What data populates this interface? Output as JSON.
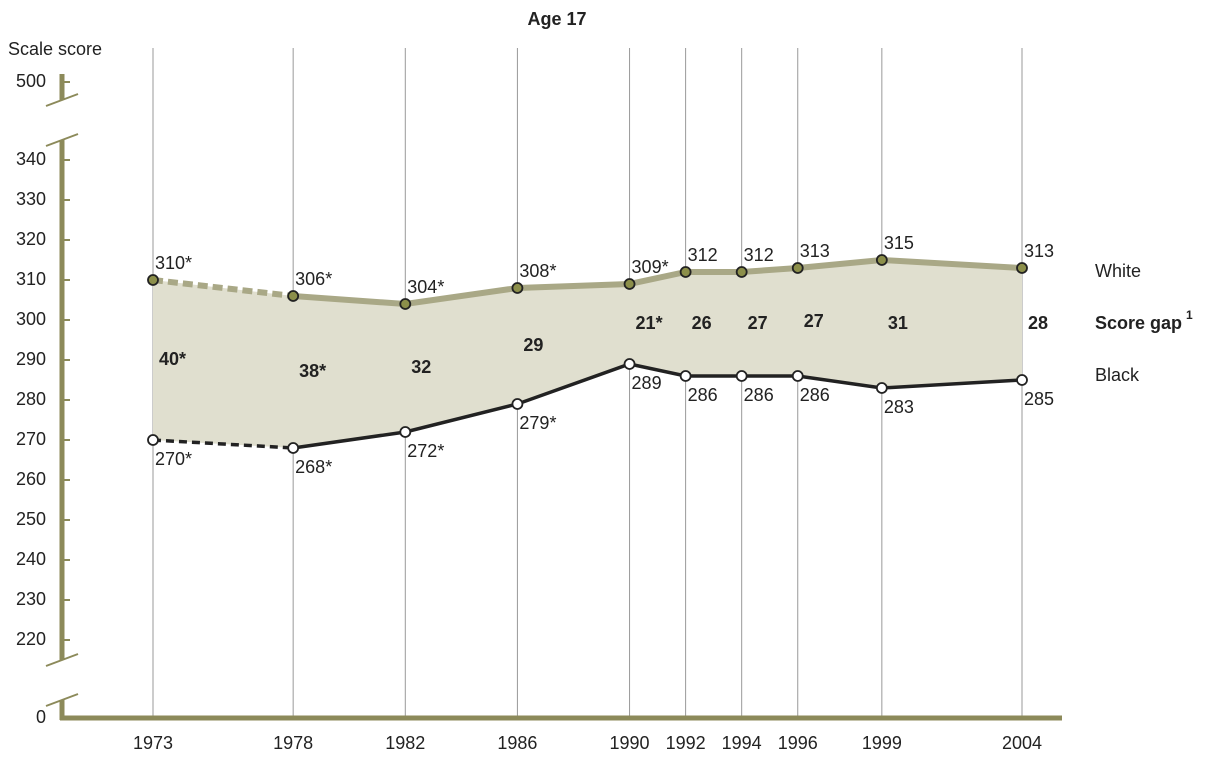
{
  "chart_data": {
    "type": "line",
    "title": "Age 17",
    "y_axis_label": "Scale score",
    "x": [
      1973,
      1978,
      1982,
      1986,
      1990,
      1992,
      1994,
      1996,
      1999,
      2004
    ],
    "xlim": [
      1970,
      2005.5
    ],
    "ylim": [
      0,
      500
    ],
    "yticks": [
      0,
      220,
      230,
      240,
      250,
      260,
      270,
      280,
      290,
      300,
      310,
      320,
      330,
      340,
      500
    ],
    "axis_break": true,
    "grid": true,
    "dashed_segments": [
      0
    ],
    "series": [
      {
        "name": "White",
        "color": "#a9a886",
        "marker_color": "#8c8f4a",
        "values": [
          310,
          306,
          304,
          308,
          309,
          312,
          312,
          313,
          315,
          313
        ],
        "value_labels": [
          "310*",
          "306*",
          "304*",
          "308*",
          "309*",
          "312",
          "312",
          "313",
          "315",
          "313"
        ]
      },
      {
        "name": "Black",
        "color": "#222222",
        "marker_color": "#ffffff",
        "values": [
          270,
          268,
          272,
          279,
          289,
          286,
          286,
          286,
          283,
          285
        ],
        "value_labels": [
          "270*",
          "268*",
          "272*",
          "279*",
          "289",
          "286",
          "286",
          "286",
          "283",
          "285"
        ]
      },
      {
        "name": "Score gap",
        "footnote": "1",
        "color": "#e0dfcf",
        "values": [
          40,
          38,
          32,
          29,
          21,
          26,
          27,
          27,
          31,
          28
        ],
        "value_labels": [
          "40*",
          "38*",
          "32",
          "29",
          "21*",
          "26",
          "27",
          "27",
          "31",
          "28"
        ]
      }
    ]
  }
}
